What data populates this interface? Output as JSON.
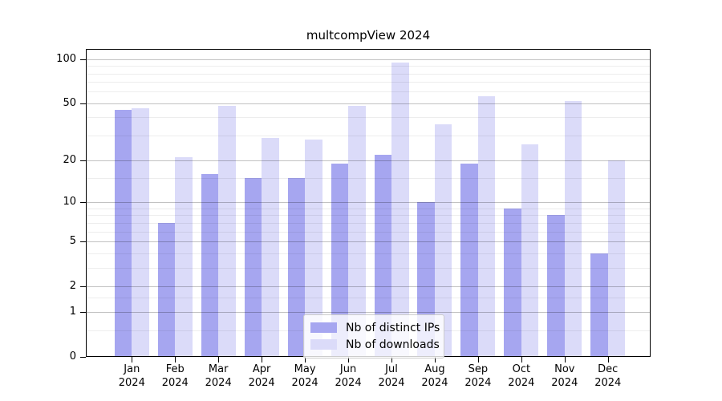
{
  "title": "multcompView 2024",
  "chart_data": {
    "type": "bar",
    "title": "multcompView 2024",
    "months": [
      "Jan",
      "Feb",
      "Mar",
      "Apr",
      "May",
      "Jun",
      "Jul",
      "Aug",
      "Sep",
      "Oct",
      "Nov",
      "Dec"
    ],
    "year": "2024",
    "categories": [
      "Jan 2024",
      "Feb 2024",
      "Mar 2024",
      "Apr 2024",
      "May 2024",
      "Jun 2024",
      "Jul 2024",
      "Aug 2024",
      "Sep 2024",
      "Oct 2024",
      "Nov 2024",
      "Dec 2024"
    ],
    "series": [
      {
        "name": "Nb of distinct IPs",
        "color": "#a6a6f0",
        "values": [
          45,
          7,
          16,
          15,
          15,
          19,
          22,
          10,
          19,
          9,
          8,
          4
        ]
      },
      {
        "name": "Nb of downloads",
        "color": "#dbdbf9",
        "values": [
          46,
          21,
          48,
          29,
          28,
          48,
          95,
          36,
          56,
          26,
          52,
          20
        ]
      }
    ],
    "xlabel": "",
    "ylabel": "",
    "yscale": "log1p",
    "ylim": [
      0,
      118
    ],
    "yticks": [
      0,
      1,
      2,
      5,
      10,
      20,
      50,
      100
    ],
    "yticks_minor": [
      0.5,
      1.5,
      3,
      4,
      6,
      7,
      8,
      9,
      15,
      30,
      40,
      60,
      70,
      80,
      90
    ],
    "grid": true,
    "legend_position": "bottom-center"
  }
}
